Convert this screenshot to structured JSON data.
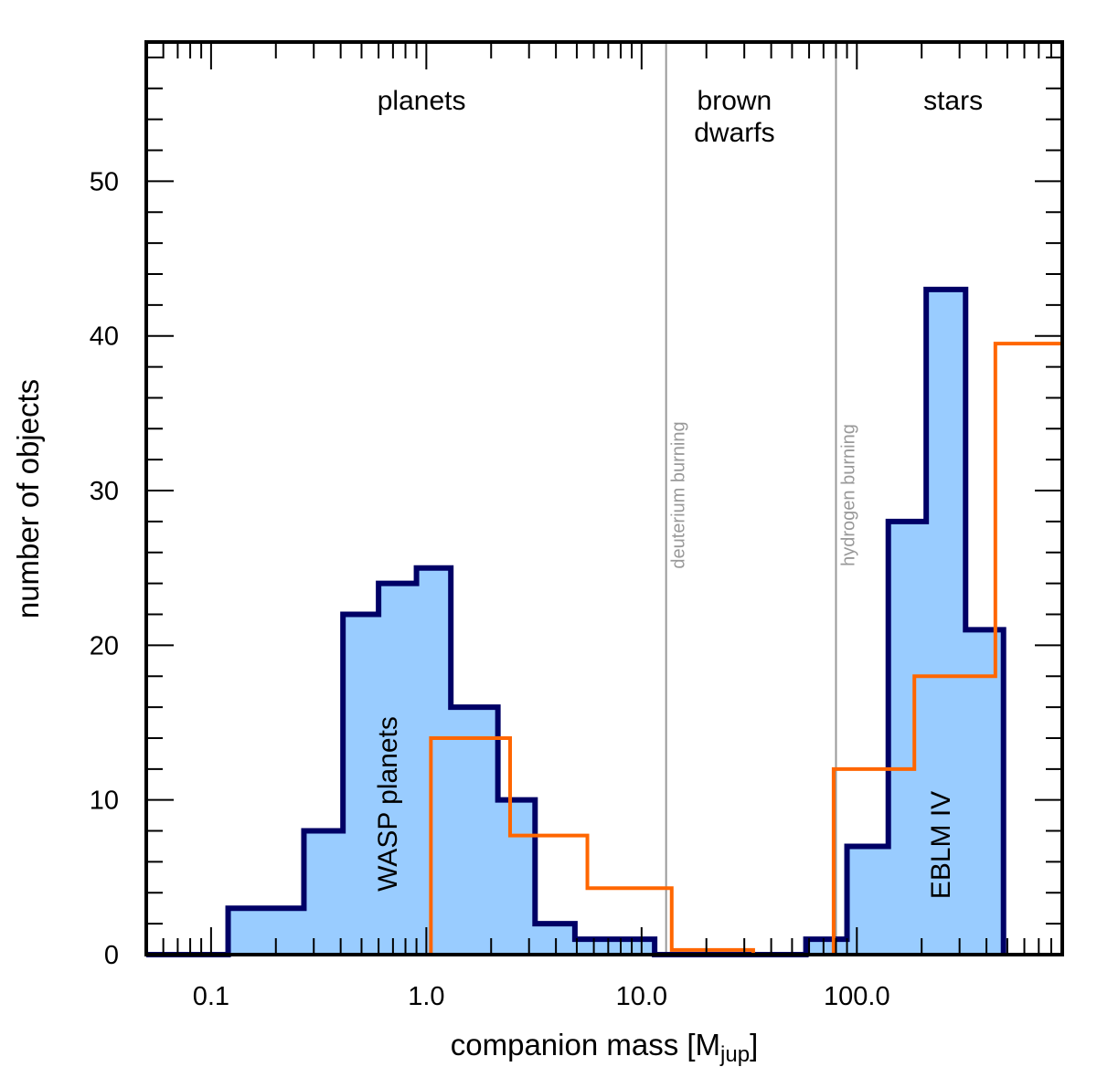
{
  "chart_data": {
    "type": "bar",
    "xlabel_main": "companion mass [M",
    "xlabel_sub": "jup",
    "xlabel_close": "]",
    "ylabel": "number of objects",
    "x_scale": "log",
    "xlim": [
      0.05,
      900
    ],
    "ylim": [
      0,
      59
    ],
    "x_tick_labels": [
      "0.1",
      "1.0",
      "10.0",
      "100.0"
    ],
    "x_tick_values": [
      0.1,
      1,
      10,
      100
    ],
    "y_tick_labels": [
      "0",
      "10",
      "20",
      "30",
      "40",
      "50"
    ],
    "y_tick_values": [
      0,
      10,
      20,
      30,
      40,
      50
    ],
    "regions": [
      {
        "lines": [
          "planets"
        ],
        "x": 0.95
      },
      {
        "lines": [
          "brown",
          "dwarfs"
        ],
        "x": 27
      },
      {
        "lines": [
          "stars"
        ],
        "x": 280
      }
    ],
    "boundaries": [
      {
        "name": "deuterium burning",
        "x": 13
      },
      {
        "name": "hydrogen burning",
        "x": 80
      }
    ],
    "series": [
      {
        "label": "WASP planets",
        "color": "#000066",
        "fill": "#99ccff",
        "edges": [
          0.05,
          0.12,
          0.27,
          0.41,
          0.6,
          0.9,
          1.3,
          2.15,
          3.2,
          4.9,
          11.5,
          58,
          90,
          140,
          210,
          320,
          480
        ],
        "values": [
          0,
          3,
          8,
          22,
          24,
          25,
          16,
          10,
          2,
          1,
          0,
          1,
          7,
          28,
          43,
          21
        ]
      },
      {
        "label": "EBLM IV",
        "color": "#ff6600",
        "edges": [
          0.05,
          1.05,
          2.45,
          5.6,
          13.8,
          33,
          78,
          185,
          440,
          900
        ],
        "values": [
          0,
          14,
          7.7,
          4.3,
          0.3,
          0,
          12,
          18,
          39.5
        ]
      }
    ]
  }
}
